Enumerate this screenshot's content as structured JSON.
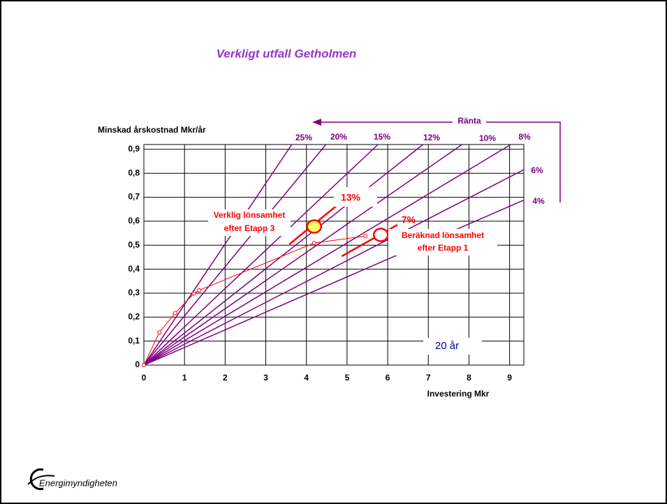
{
  "chart_data": {
    "type": "line",
    "title": "Verkligt utfall Getholmen",
    "x_label": "Investering Mkr",
    "y_label": "Minskad årskostnad Mkr/år",
    "xlim": [
      0,
      9.35
    ],
    "ylim": [
      0,
      0.92
    ],
    "xticks": [
      0,
      1,
      2,
      3,
      4,
      5,
      6,
      7,
      8,
      9
    ],
    "yticks": [
      0,
      {
        "value": 0.1,
        "label": "0,1"
      },
      {
        "value": 0.2,
        "label": "0,2"
      },
      {
        "value": 0.3,
        "label": "0,3"
      },
      {
        "value": 0.4,
        "label": "0,4"
      },
      {
        "value": 0.5,
        "label": "0,5"
      },
      {
        "value": 0.6,
        "label": "0,6"
      },
      {
        "value": 0.7,
        "label": "0,7"
      },
      {
        "value": 0.8,
        "label": "0,8"
      },
      {
        "value": 0.9,
        "label": "0,9"
      }
    ],
    "grid": true,
    "series": [
      {
        "name": "25%",
        "color": "#800080",
        "x": [
          0,
          3.64
        ],
        "values": [
          0,
          0.92
        ]
      },
      {
        "name": "20%",
        "color": "#800080",
        "x": [
          0,
          4.48
        ],
        "values": [
          0,
          0.92
        ]
      },
      {
        "name": "15%",
        "color": "#800080",
        "x": [
          0,
          5.76
        ],
        "values": [
          0,
          0.92
        ]
      },
      {
        "name": "12%",
        "color": "#800080",
        "x": [
          0,
          6.87
        ],
        "values": [
          0,
          0.92
        ]
      },
      {
        "name": "10%",
        "color": "#800080",
        "x": [
          0,
          7.83
        ],
        "values": [
          0,
          0.92
        ]
      },
      {
        "name": "8%",
        "color": "#800080",
        "x": [
          0,
          9.03
        ],
        "values": [
          0,
          0.92
        ]
      },
      {
        "name": "6%",
        "color": "#800080",
        "x": [
          0,
          9.35
        ],
        "values": [
          0,
          0.815
        ]
      },
      {
        "name": "4%",
        "color": "#800080",
        "x": [
          0,
          9.35
        ],
        "values": [
          0,
          0.688
        ]
      }
    ],
    "curve": {
      "color": "#ff0000",
      "x": [
        0,
        0.38,
        0.77,
        1.23,
        1.36,
        4.19,
        5.45
      ],
      "values": [
        0,
        0.136,
        0.217,
        0.298,
        0.312,
        0.509,
        0.538
      ]
    },
    "red_lines": [
      {
        "color": "#ff0000",
        "x": [
          3.58,
          4.84
        ],
        "values": [
          0.504,
          0.678
        ]
      },
      {
        "color": "#ff0000",
        "x": [
          4.87,
          6.24
        ],
        "values": [
          0.454,
          0.585
        ]
      }
    ],
    "markers": [
      {
        "x": 4.19,
        "y": 0.578,
        "fill": "#ffff66",
        "stroke": "#ff0000"
      },
      {
        "x": 5.83,
        "y": 0.543,
        "fill": "#ffffff",
        "stroke": "#ff0000"
      }
    ],
    "annotations": [
      "13%",
      "7%",
      "Verklig lönsamhet",
      "efter Etapp 3",
      "Beräknad lönsamhet",
      "efter Etapp 1"
    ],
    "rate_label": "Ränta",
    "period_label": "20 år"
  },
  "logo": "Energimyndigheten"
}
